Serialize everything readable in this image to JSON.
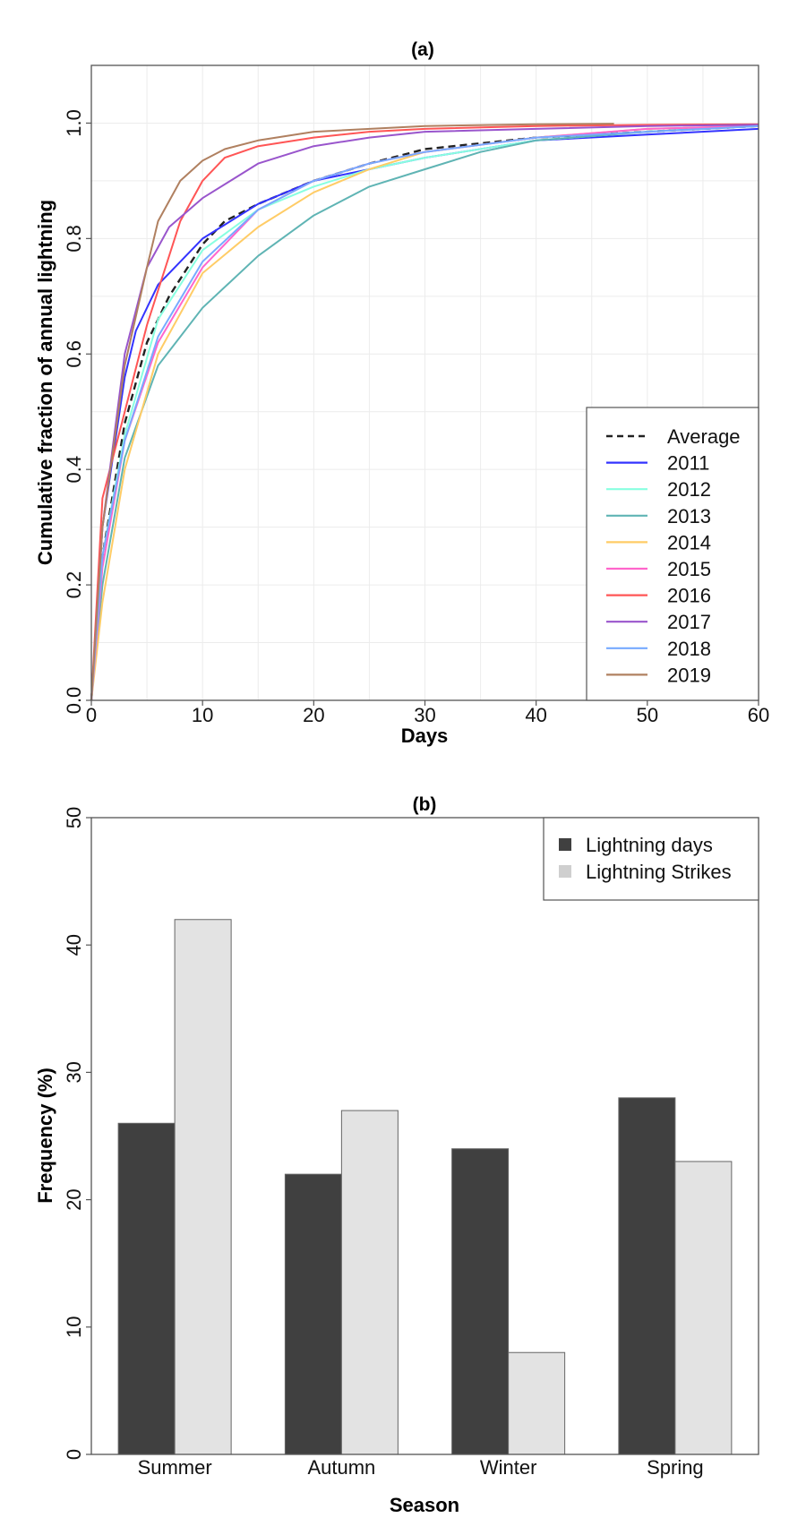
{
  "chart_data": [
    {
      "type": "line",
      "title": "(a)",
      "xlabel": "Days",
      "ylabel": "Cumulative fraction of annual lightning",
      "xlim": [
        0,
        60
      ],
      "ylim": [
        0,
        1.1
      ],
      "x_ticks": [
        0,
        10,
        20,
        30,
        40,
        50,
        60
      ],
      "y_ticks": [
        0.0,
        0.2,
        0.4,
        0.6,
        0.8,
        1.0
      ],
      "y_tick_labels": [
        "0.0",
        "0.2",
        "0.4",
        "0.6",
        "0.8",
        "1.0"
      ],
      "grid": true,
      "legend_position": "bottom-right",
      "series": [
        {
          "name": "Average",
          "color": "#222222",
          "dash": true,
          "x": [
            0,
            1,
            3,
            5,
            7,
            10,
            12,
            15,
            20,
            25,
            30,
            40,
            50,
            60
          ],
          "y": [
            0,
            0.25,
            0.48,
            0.62,
            0.7,
            0.79,
            0.83,
            0.86,
            0.9,
            0.93,
            0.955,
            0.975,
            0.985,
            0.995
          ]
        },
        {
          "name": "2011",
          "color": "#3333ff",
          "dash": false,
          "x": [
            0,
            1,
            3,
            4,
            6,
            10,
            15,
            20,
            25,
            30,
            40,
            50,
            60
          ],
          "y": [
            0,
            0.3,
            0.56,
            0.64,
            0.72,
            0.8,
            0.86,
            0.9,
            0.92,
            0.94,
            0.97,
            0.98,
            0.99
          ]
        },
        {
          "name": "2012",
          "color": "#88ffe0",
          "dash": false,
          "x": [
            0,
            1,
            3,
            6,
            10,
            15,
            20,
            25,
            30,
            40,
            50,
            60
          ],
          "y": [
            0,
            0.25,
            0.46,
            0.66,
            0.78,
            0.85,
            0.89,
            0.92,
            0.94,
            0.97,
            0.985,
            0.995
          ]
        },
        {
          "name": "2013",
          "color": "#5fb4b4",
          "dash": false,
          "x": [
            0,
            1,
            3,
            6,
            10,
            15,
            20,
            25,
            30,
            35,
            40,
            50,
            60
          ],
          "y": [
            0,
            0.2,
            0.42,
            0.58,
            0.68,
            0.77,
            0.84,
            0.89,
            0.92,
            0.95,
            0.97,
            0.985,
            0.995
          ]
        },
        {
          "name": "2014",
          "color": "#ffcc66",
          "dash": false,
          "x": [
            0,
            1,
            3,
            6,
            10,
            15,
            20,
            25,
            30,
            40,
            50,
            60
          ],
          "y": [
            0,
            0.17,
            0.4,
            0.6,
            0.74,
            0.82,
            0.88,
            0.92,
            0.95,
            0.975,
            0.99,
            0.995
          ]
        },
        {
          "name": "2015",
          "color": "#ff66cc",
          "dash": false,
          "x": [
            0,
            1,
            3,
            6,
            10,
            15,
            20,
            25,
            30,
            40,
            50,
            60
          ],
          "y": [
            0,
            0.23,
            0.45,
            0.62,
            0.75,
            0.85,
            0.9,
            0.93,
            0.95,
            0.975,
            0.99,
            0.995
          ]
        },
        {
          "name": "2016",
          "color": "#ff5555",
          "dash": false,
          "x": [
            0,
            1,
            3,
            5,
            8,
            10,
            12,
            15,
            20,
            25,
            30,
            40,
            50,
            60
          ],
          "y": [
            0,
            0.35,
            0.5,
            0.65,
            0.83,
            0.9,
            0.94,
            0.96,
            0.975,
            0.985,
            0.99,
            0.995,
            0.997,
            0.998
          ]
        },
        {
          "name": "2017",
          "color": "#9955cc",
          "dash": false,
          "x": [
            0,
            1,
            3,
            5,
            7,
            10,
            15,
            20,
            25,
            30,
            40,
            50,
            60
          ],
          "y": [
            0,
            0.3,
            0.6,
            0.75,
            0.82,
            0.87,
            0.93,
            0.96,
            0.975,
            0.985,
            0.99,
            0.995,
            0.997
          ]
        },
        {
          "name": "2018",
          "color": "#77aaff",
          "dash": false,
          "x": [
            0,
            1,
            3,
            6,
            10,
            15,
            20,
            25,
            30,
            40,
            50,
            60
          ],
          "y": [
            0,
            0.25,
            0.45,
            0.63,
            0.76,
            0.85,
            0.9,
            0.93,
            0.95,
            0.975,
            0.985,
            0.995
          ]
        },
        {
          "name": "2019",
          "color": "#b08060",
          "dash": false,
          "x": [
            0,
            1,
            3,
            5,
            6,
            8,
            10,
            12,
            15,
            20,
            30,
            40,
            47
          ],
          "y": [
            0,
            0.3,
            0.58,
            0.75,
            0.83,
            0.9,
            0.935,
            0.955,
            0.97,
            0.985,
            0.995,
            0.998,
            0.999
          ]
        }
      ]
    },
    {
      "type": "bar",
      "title": "(b)",
      "xlabel": "Season",
      "ylabel": "Frequency (%)",
      "ylim": [
        0,
        50
      ],
      "y_ticks": [
        0,
        10,
        20,
        30,
        40,
        50
      ],
      "categories": [
        "Summer",
        "Autumn",
        "Winter",
        "Spring"
      ],
      "legend_position": "top-right",
      "series": [
        {
          "name": "Lightning days",
          "color": "#404040",
          "values": [
            26,
            22,
            24,
            28
          ]
        },
        {
          "name": "Lightning Strikes",
          "color": "#e3e3e3",
          "values": [
            42,
            27,
            8,
            23
          ]
        }
      ]
    }
  ]
}
